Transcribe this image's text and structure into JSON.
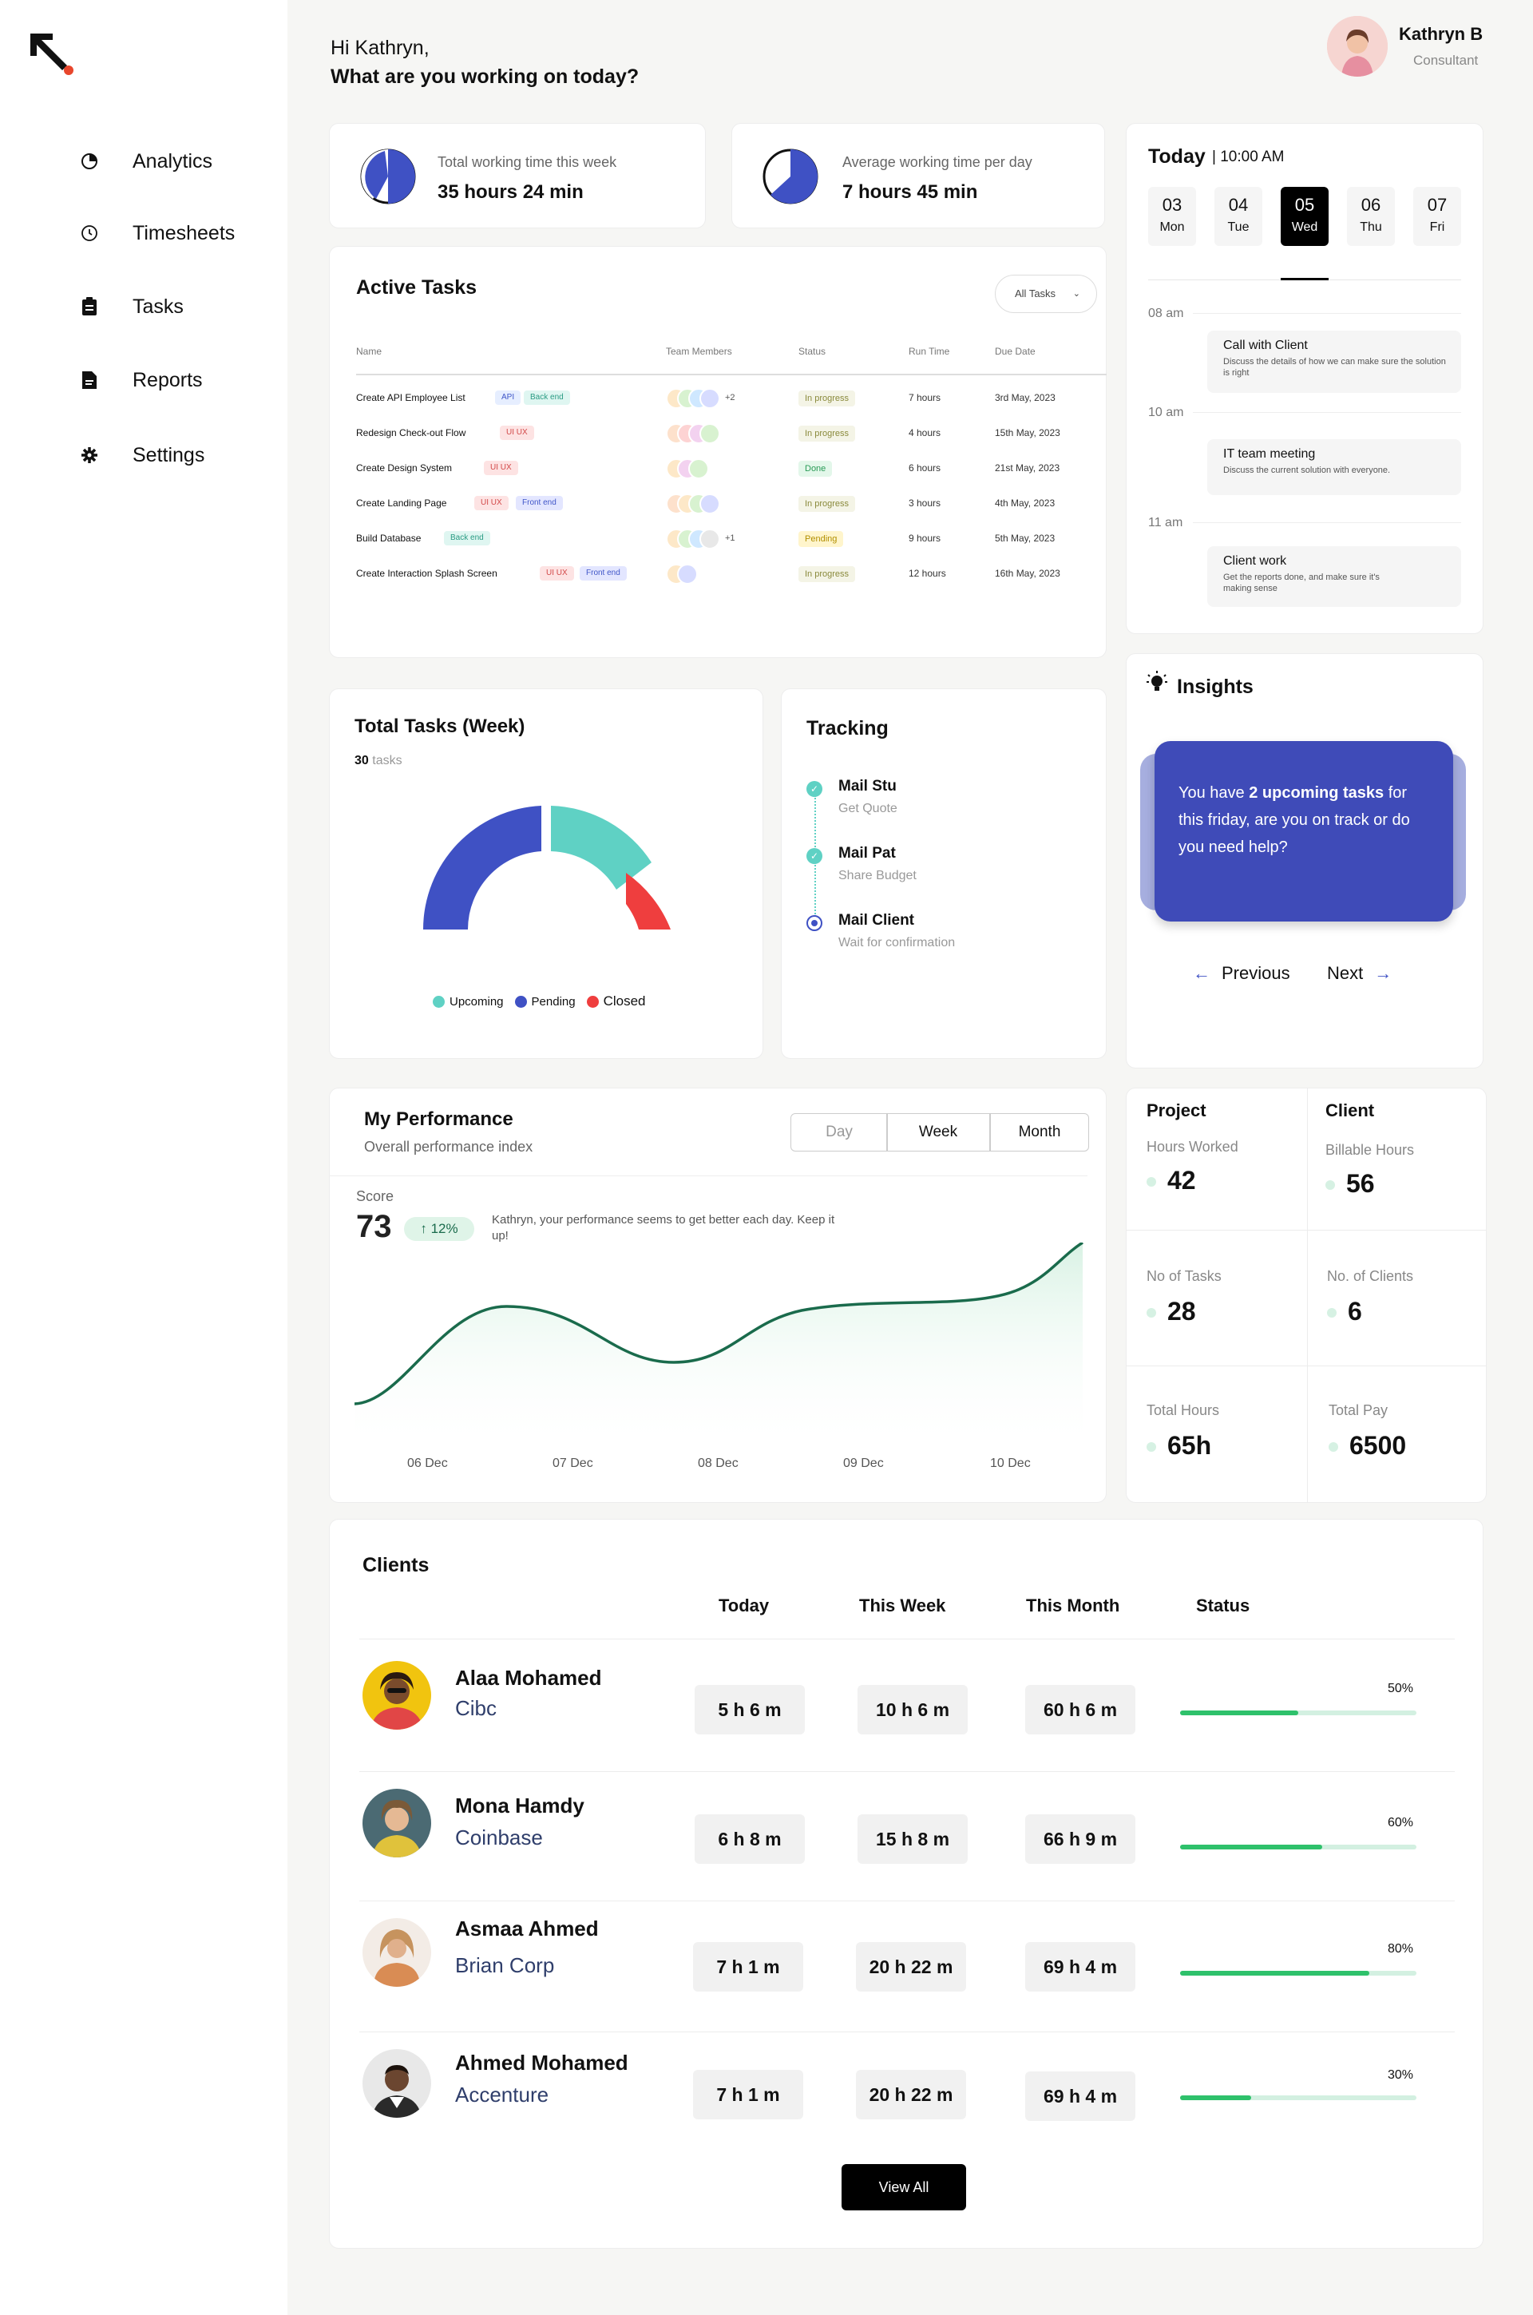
{
  "nav": {
    "items": [
      {
        "label": "Analytics",
        "icon": "analytics-icon"
      },
      {
        "label": "Timesheets",
        "icon": "clock-icon"
      },
      {
        "label": "Tasks",
        "icon": "clipboard-icon"
      },
      {
        "label": "Reports",
        "icon": "document-icon"
      },
      {
        "label": "Settings",
        "icon": "gear-icon"
      }
    ]
  },
  "header": {
    "greeting": "Hi Kathryn,",
    "question": "What are you working on today?",
    "user_name": "Kathryn B",
    "user_role": "Consultant"
  },
  "summary": {
    "total_label": "Total working time this week",
    "total_value": "35 hours 24 min",
    "avg_label": "Average working time per day",
    "avg_value": "7 hours 45 min"
  },
  "active_tasks": {
    "title": "Active Tasks",
    "filter": "All Tasks",
    "columns": [
      "Name",
      "Team Members",
      "Status",
      "Run Time",
      "Due Date"
    ],
    "rows": [
      {
        "name": "Create API Employee List",
        "tags": [
          "API",
          "Back end"
        ],
        "more": "+2",
        "status": "In progress",
        "run": "7 hours",
        "due": "3rd May, 2023"
      },
      {
        "name": "Redesign Check-out Flow",
        "tags": [
          "UI UX"
        ],
        "more": "",
        "status": "In progress",
        "run": "4 hours",
        "due": "15th May, 2023"
      },
      {
        "name": "Create Design System",
        "tags": [
          "UI UX"
        ],
        "more": "",
        "status": "Done",
        "run": "6 hours",
        "due": "21st May, 2023"
      },
      {
        "name": "Create Landing Page",
        "tags": [
          "UI UX",
          "Front end"
        ],
        "more": "",
        "status": "In progress",
        "run": "3 hours",
        "due": "4th May, 2023"
      },
      {
        "name": "Build Database",
        "tags": [
          "Back end"
        ],
        "more": "+1",
        "status": "Pending",
        "run": "9 hours",
        "due": "5th May, 2023"
      },
      {
        "name": "Create Interaction Splash Screen",
        "tags": [
          "UI UX",
          "Front end"
        ],
        "more": "",
        "status": "In progress",
        "run": "12 hours",
        "due": "16th May, 2023"
      }
    ]
  },
  "calendar": {
    "title": "Today",
    "time": "| 10:00 AM",
    "days": [
      {
        "num": "03",
        "name": "Mon"
      },
      {
        "num": "04",
        "name": "Tue"
      },
      {
        "num": "05",
        "name": "Wed"
      },
      {
        "num": "06",
        "name": "Thu"
      },
      {
        "num": "07",
        "name": "Fri"
      }
    ],
    "times": [
      "08 am",
      "10 am",
      "11 am"
    ],
    "events": [
      {
        "title": "Call with Client",
        "desc": "Discuss the details of how we can make sure the solution is right"
      },
      {
        "title": "IT team meeting",
        "desc": "Discuss the current solution with everyone."
      },
      {
        "title": "Client work",
        "desc": "Get the reports done, and make sure it's making sense"
      }
    ]
  },
  "total_tasks": {
    "title": "Total Tasks (Week)",
    "count": "30",
    "count_unit": "tasks",
    "legend": [
      "Upcoming",
      "Pending",
      "Closed"
    ],
    "colors": {
      "upcoming": "#5fd1c4",
      "pending": "#3f51c4",
      "closed": "#ef3e3e"
    }
  },
  "tracking": {
    "title": "Tracking",
    "items": [
      {
        "title": "Mail Stu",
        "sub": "Get Quote"
      },
      {
        "title": "Mail Pat",
        "sub": "Share Budget"
      },
      {
        "title": "Mail Client",
        "sub": "Wait for confirmation"
      }
    ]
  },
  "insights": {
    "title": "Insights",
    "text_a": "You have ",
    "text_b": "2 upcoming tasks",
    "text_c": " for this friday, are you on track or do you need help?",
    "prev": "Previous",
    "next": "Next"
  },
  "performance": {
    "title": "My Performance",
    "subtitle": "Overall performance index",
    "tabs": [
      "Day",
      "Week",
      "Month"
    ],
    "score_label": "Score",
    "score": "73",
    "change": "12%",
    "message": "Kathryn, your performance seems to get better each day. Keep it up!"
  },
  "chart_data": {
    "type": "area",
    "x": [
      "06 Dec",
      "07 Dec",
      "08 Dec",
      "09 Dec",
      "10 Dec"
    ],
    "title": "",
    "xlabel": "",
    "ylabel": "",
    "color": "#1a6b4c"
  },
  "stats": {
    "project_title": "Project",
    "client_title": "Client",
    "cells": [
      {
        "label": "Hours Worked",
        "value": "42"
      },
      {
        "label": "Billable Hours",
        "value": "56"
      },
      {
        "label": "No of Tasks",
        "value": "28"
      },
      {
        "label": "No. of Clients",
        "value": "6"
      },
      {
        "label": "Total Hours",
        "value": "65h"
      },
      {
        "label": "Total Pay",
        "value": "6500"
      }
    ]
  },
  "clients": {
    "title": "Clients",
    "columns": [
      "Today",
      "This Week",
      "This Month",
      "Status"
    ],
    "rows": [
      {
        "name": "Alaa Mohamed",
        "company": "Cibc",
        "today": "5 h 6 m",
        "week": "10 h 6 m",
        "month": "60 h 6 m",
        "pct": "50%",
        "progress": 0.5
      },
      {
        "name": "Mona Hamdy",
        "company": "Coinbase",
        "today": "6 h 8 m",
        "week": "15 h 8 m",
        "month": "66 h 9 m",
        "pct": "60%",
        "progress": 0.6
      },
      {
        "name": "Asmaa Ahmed",
        "company": "Brian Corp",
        "today": "7 h 1 m",
        "week": "20 h 22 m",
        "month": "69 h 4 m",
        "pct": "80%",
        "progress": 0.8
      },
      {
        "name": "Ahmed Mohamed",
        "company": "Accenture",
        "today": "7 h 1 m",
        "week": "20 h 22 m",
        "month": "69 h 4 m",
        "pct": "30%",
        "progress": 0.3
      }
    ],
    "view_all": "View All"
  }
}
